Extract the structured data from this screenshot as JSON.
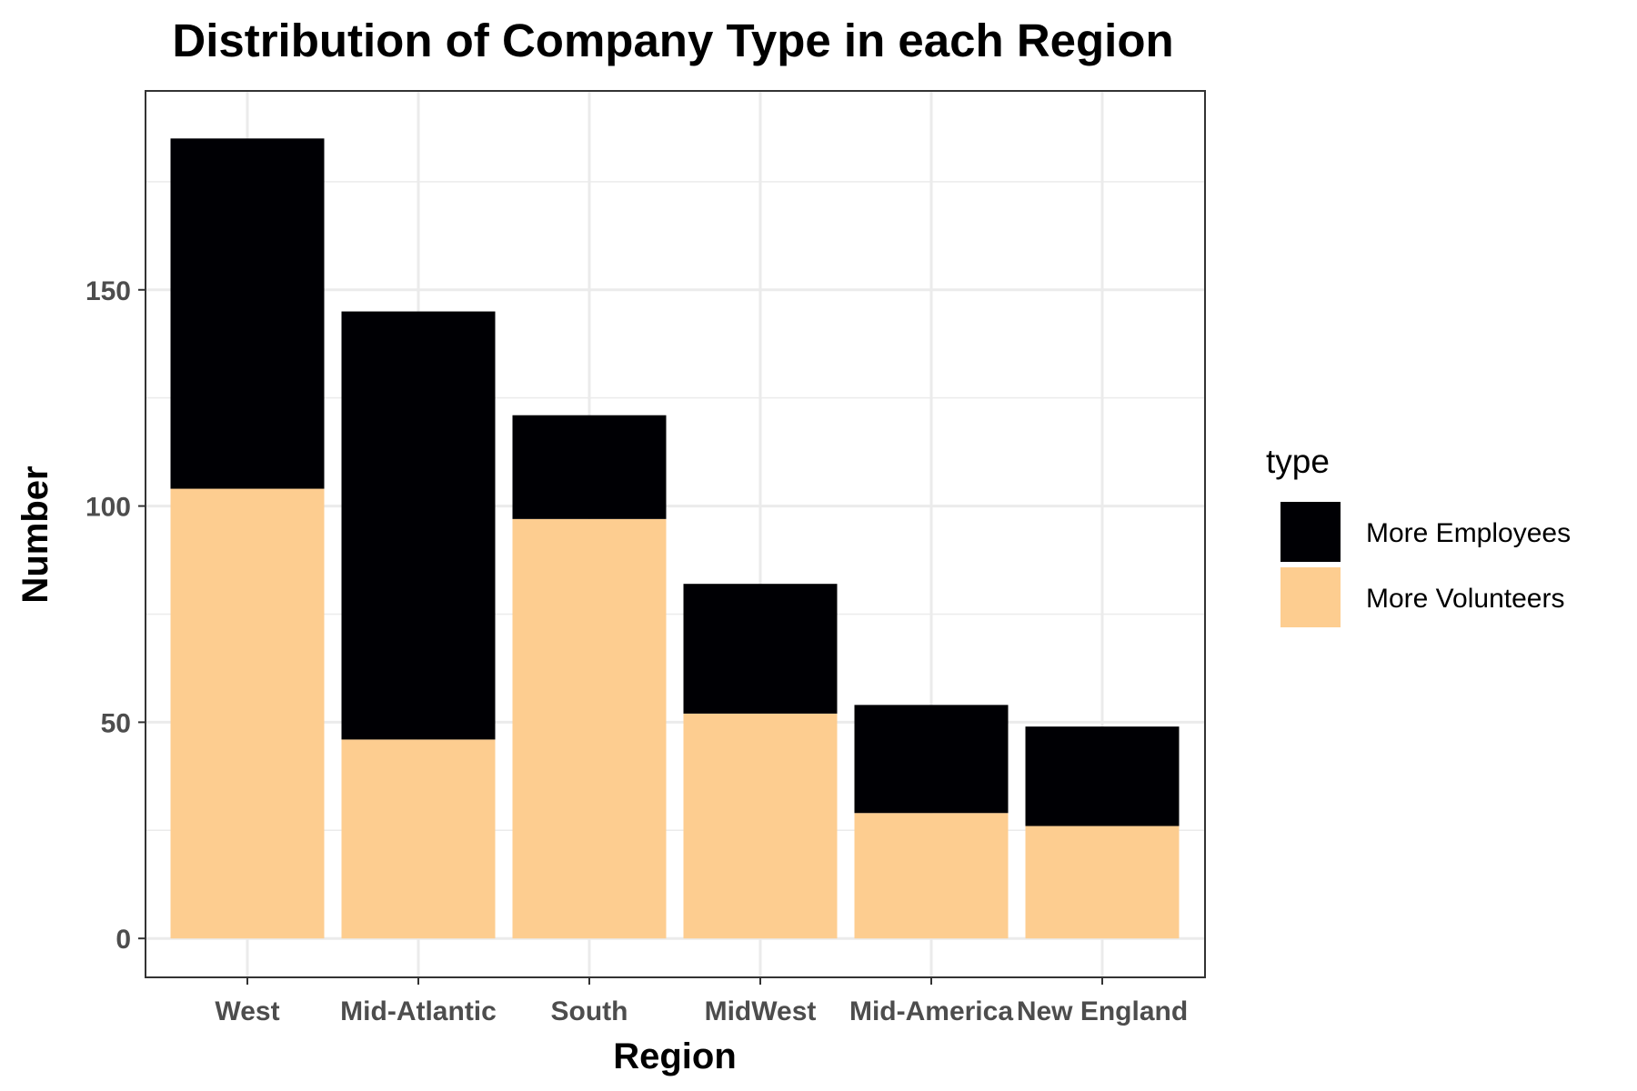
{
  "chart_data": {
    "type": "bar",
    "stacked": true,
    "title": "Distribution of Company Type in each Region",
    "xlabel": "Region",
    "ylabel": "Number",
    "categories": [
      "West",
      "Mid-Atlantic",
      "South",
      "MidWest",
      "Mid-America",
      "New England"
    ],
    "series": [
      {
        "name": "More Volunteers",
        "color": "#fdcd90",
        "values": [
          104,
          46,
          97,
          52,
          29,
          26
        ]
      },
      {
        "name": "More Employees",
        "color": "#000004",
        "values": [
          81,
          99,
          24,
          30,
          25,
          23
        ]
      }
    ],
    "ylim": [
      -9,
      196
    ],
    "yticks": [
      0,
      50,
      100,
      150
    ],
    "ytick_labels": [
      "0",
      "50",
      "100",
      "150"
    ],
    "grid": true,
    "legend": {
      "title": "type",
      "placement": "right",
      "entries": [
        "More Employees",
        "More Volunteers"
      ]
    },
    "legend_colors": [
      "#000004",
      "#fdcd90"
    ]
  }
}
